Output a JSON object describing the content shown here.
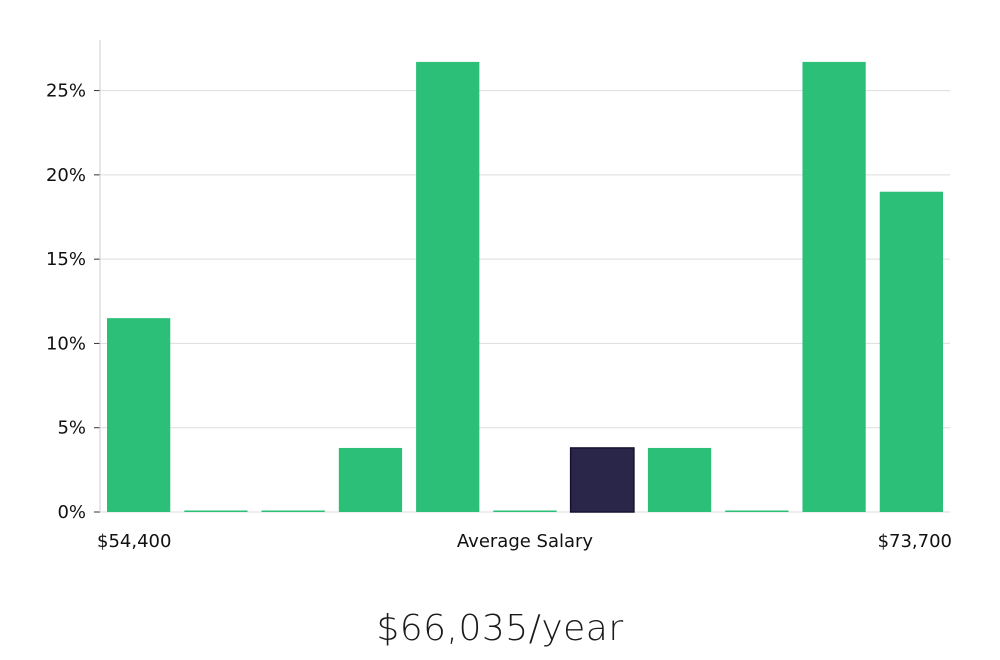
{
  "chart_data": {
    "type": "bar",
    "title": "",
    "xlabel": "Average Salary",
    "ylabel": "",
    "x_min_label": "$54,400",
    "x_max_label": "$73,700",
    "ylim": [
      0,
      28
    ],
    "yticks": [
      0,
      5,
      10,
      15,
      20,
      25
    ],
    "ytick_labels": [
      "0%",
      "5%",
      "10%",
      "15%",
      "20%",
      "25%"
    ],
    "values": [
      11.5,
      0,
      0,
      3.8,
      26.7,
      0,
      3.8,
      3.8,
      0,
      26.7,
      19.0
    ],
    "highlight_index": 6,
    "colors": {
      "bar": "#2bbf78",
      "highlight": "#29264a",
      "grid": "#dddddd",
      "axis": "#cccccc"
    }
  },
  "summary": {
    "salary": "$66,035/year"
  }
}
